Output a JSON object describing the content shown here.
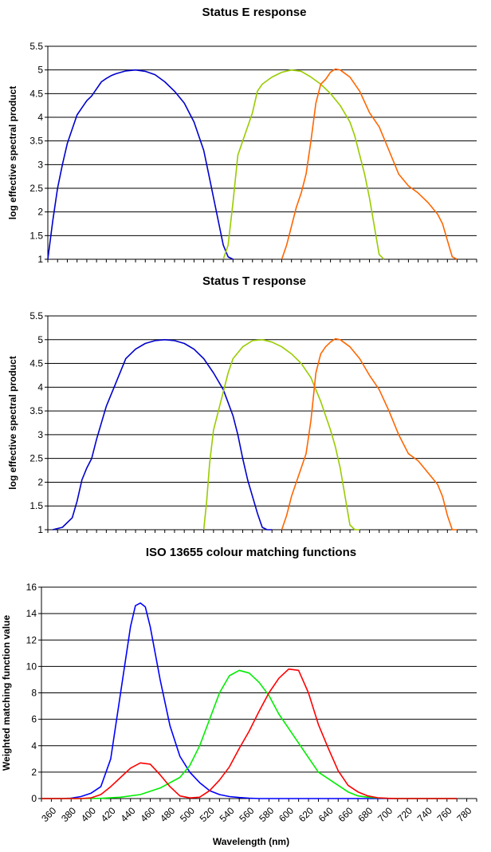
{
  "chart_data": [
    {
      "type": "line",
      "title": "Status E response",
      "xlabel": "",
      "ylabel": "log effective spectral product",
      "xlim": [
        360,
        800
      ],
      "ylim": [
        1,
        5.5
      ],
      "ytick_labels": [
        "1",
        "1.5",
        "2",
        "2.5",
        "3",
        "3.5",
        "4",
        "4.5",
        "5",
        "5.5"
      ],
      "grid": true,
      "legend": "none",
      "series": [
        {
          "color": "#0000CC",
          "x": [
            360,
            365,
            370,
            375,
            380,
            385,
            390,
            395,
            400,
            405,
            410,
            415,
            420,
            425,
            430,
            440,
            450,
            460,
            470,
            480,
            490,
            500,
            505,
            510,
            515,
            520,
            525,
            530,
            535,
            540,
            545,
            550
          ],
          "y": [
            1.0,
            1.8,
            2.5,
            3.0,
            3.45,
            3.75,
            4.05,
            4.2,
            4.35,
            4.45,
            4.6,
            4.75,
            4.82,
            4.88,
            4.92,
            4.98,
            5.0,
            4.97,
            4.9,
            4.75,
            4.55,
            4.3,
            4.1,
            3.9,
            3.6,
            3.3,
            2.8,
            2.3,
            1.8,
            1.3,
            1.05,
            1.0
          ]
        },
        {
          "color": "#99CC00",
          "x": [
            540,
            545,
            550,
            555,
            560,
            565,
            570,
            575,
            580,
            590,
            600,
            610,
            620,
            630,
            640,
            650,
            660,
            670,
            675,
            680,
            685,
            690,
            695,
            700,
            705
          ],
          "y": [
            1.0,
            1.3,
            2.2,
            3.2,
            3.5,
            3.8,
            4.1,
            4.55,
            4.7,
            4.85,
            4.95,
            5.0,
            4.97,
            4.85,
            4.7,
            4.5,
            4.25,
            3.9,
            3.6,
            3.2,
            2.8,
            2.3,
            1.7,
            1.1,
            1.0
          ]
        },
        {
          "color": "#FF6600",
          "x": [
            600,
            605,
            610,
            615,
            620,
            625,
            630,
            635,
            640,
            645,
            650,
            655,
            660,
            670,
            680,
            690,
            700,
            710,
            720,
            730,
            740,
            750,
            760,
            765,
            770,
            775,
            780
          ],
          "y": [
            1.0,
            1.3,
            1.7,
            2.1,
            2.4,
            2.8,
            3.5,
            4.3,
            4.7,
            4.8,
            4.95,
            5.02,
            5.0,
            4.85,
            4.55,
            4.1,
            3.8,
            3.3,
            2.8,
            2.55,
            2.4,
            2.2,
            1.95,
            1.75,
            1.4,
            1.05,
            1.0
          ]
        }
      ]
    },
    {
      "type": "line",
      "title": "Status T response",
      "xlabel": "",
      "ylabel": "log effective spectral product",
      "xlim": [
        360,
        800
      ],
      "ylim": [
        1,
        5.5
      ],
      "ytick_labels": [
        "1",
        "1.5",
        "2",
        "2.5",
        "3",
        "3.5",
        "4",
        "4.5",
        "5",
        "5.5"
      ],
      "grid": true,
      "legend": "none",
      "series": [
        {
          "color": "#0000CC",
          "x": [
            365,
            375,
            385,
            390,
            395,
            400,
            405,
            410,
            420,
            430,
            440,
            450,
            460,
            470,
            480,
            490,
            500,
            510,
            520,
            530,
            540,
            550,
            555,
            560,
            565,
            570,
            575,
            580,
            585,
            590
          ],
          "y": [
            1.0,
            1.05,
            1.25,
            1.6,
            2.05,
            2.3,
            2.5,
            2.9,
            3.6,
            4.1,
            4.6,
            4.8,
            4.92,
            4.98,
            5.0,
            4.98,
            4.92,
            4.8,
            4.6,
            4.3,
            3.95,
            3.4,
            3.0,
            2.5,
            2.05,
            1.7,
            1.35,
            1.05,
            1.0,
            1.0
          ]
        },
        {
          "color": "#99CC00",
          "x": [
            520,
            523,
            526,
            530,
            535,
            540,
            545,
            550,
            560,
            570,
            580,
            590,
            600,
            610,
            620,
            630,
            640,
            650,
            655,
            660,
            665,
            670,
            675,
            680
          ],
          "y": [
            1.0,
            1.6,
            2.4,
            3.1,
            3.5,
            3.9,
            4.3,
            4.6,
            4.85,
            4.98,
            5.0,
            4.95,
            4.85,
            4.7,
            4.5,
            4.2,
            3.7,
            3.1,
            2.75,
            2.3,
            1.7,
            1.1,
            1.0,
            1.0
          ]
        },
        {
          "color": "#FF6600",
          "x": [
            600,
            605,
            610,
            615,
            620,
            625,
            630,
            635,
            640,
            645,
            650,
            655,
            660,
            670,
            680,
            690,
            700,
            710,
            720,
            730,
            740,
            750,
            760,
            765,
            770,
            775,
            780
          ],
          "y": [
            1.0,
            1.3,
            1.7,
            2.0,
            2.3,
            2.6,
            3.3,
            4.3,
            4.7,
            4.85,
            4.95,
            5.02,
            5.0,
            4.85,
            4.6,
            4.25,
            3.95,
            3.5,
            3.0,
            2.6,
            2.45,
            2.2,
            1.95,
            1.7,
            1.3,
            1.0,
            1.0
          ]
        }
      ]
    },
    {
      "type": "line",
      "title": "ISO 13655 colour matching functions",
      "xlabel": "Wavelength (nm)",
      "ylabel": "Weighted matching function value",
      "xlim": [
        360,
        800
      ],
      "ylim": [
        0,
        16
      ],
      "ytick_labels": [
        "0",
        "2",
        "4",
        "6",
        "8",
        "10",
        "12",
        "14",
        "16"
      ],
      "xtick_labels": [
        "360",
        "380",
        "400",
        "420",
        "440",
        "460",
        "480",
        "500",
        "520",
        "540",
        "560",
        "580",
        "600",
        "620",
        "640",
        "660",
        "680",
        "700",
        "720",
        "740",
        "760",
        "780"
      ],
      "grid": true,
      "legend": "none",
      "series": [
        {
          "color": "#0000FF",
          "x": [
            360,
            370,
            380,
            390,
            400,
            410,
            420,
            430,
            440,
            450,
            455,
            460,
            465,
            470,
            480,
            490,
            500,
            510,
            520,
            530,
            540,
            550,
            560,
            570,
            580,
            600,
            620,
            640,
            660,
            680,
            700,
            720,
            740,
            760,
            780
          ],
          "y": [
            0,
            0,
            0,
            0.03,
            0.15,
            0.4,
            0.9,
            3.0,
            8.0,
            13.0,
            14.6,
            14.8,
            14.5,
            13.0,
            9.0,
            5.5,
            3.2,
            2.0,
            1.2,
            0.6,
            0.3,
            0.15,
            0.08,
            0.03,
            0,
            0,
            0,
            0,
            0,
            0,
            0,
            0,
            0,
            0,
            0
          ]
        },
        {
          "color": "#00EE00",
          "x": [
            360,
            380,
            400,
            420,
            440,
            460,
            480,
            500,
            510,
            520,
            530,
            540,
            550,
            560,
            570,
            580,
            590,
            600,
            610,
            620,
            630,
            640,
            650,
            660,
            670,
            680,
            690,
            700,
            710,
            720,
            740,
            760,
            780
          ],
          "y": [
            0,
            0,
            0,
            0.02,
            0.1,
            0.3,
            0.8,
            1.6,
            2.5,
            4.0,
            6.0,
            8.0,
            9.3,
            9.7,
            9.5,
            8.8,
            7.8,
            6.4,
            5.3,
            4.2,
            3.1,
            2.0,
            1.5,
            1.0,
            0.5,
            0.2,
            0.1,
            0.05,
            0.02,
            0,
            0,
            0,
            0
          ]
        },
        {
          "color": "#FF0000",
          "x": [
            360,
            380,
            400,
            410,
            420,
            430,
            440,
            450,
            460,
            470,
            480,
            490,
            500,
            510,
            520,
            530,
            540,
            550,
            560,
            570,
            580,
            590,
            600,
            610,
            620,
            630,
            640,
            650,
            660,
            670,
            680,
            690,
            700,
            710,
            720,
            740,
            760,
            780
          ],
          "y": [
            0,
            0,
            0,
            0.05,
            0.3,
            0.9,
            1.6,
            2.3,
            2.7,
            2.6,
            1.8,
            0.9,
            0.2,
            0.05,
            0.1,
            0.6,
            1.4,
            2.4,
            3.8,
            5.1,
            6.6,
            8.0,
            9.1,
            9.8,
            9.7,
            8.0,
            5.6,
            3.8,
            2.1,
            1.0,
            0.5,
            0.2,
            0.06,
            0.02,
            0,
            0,
            0,
            0
          ]
        }
      ]
    }
  ]
}
